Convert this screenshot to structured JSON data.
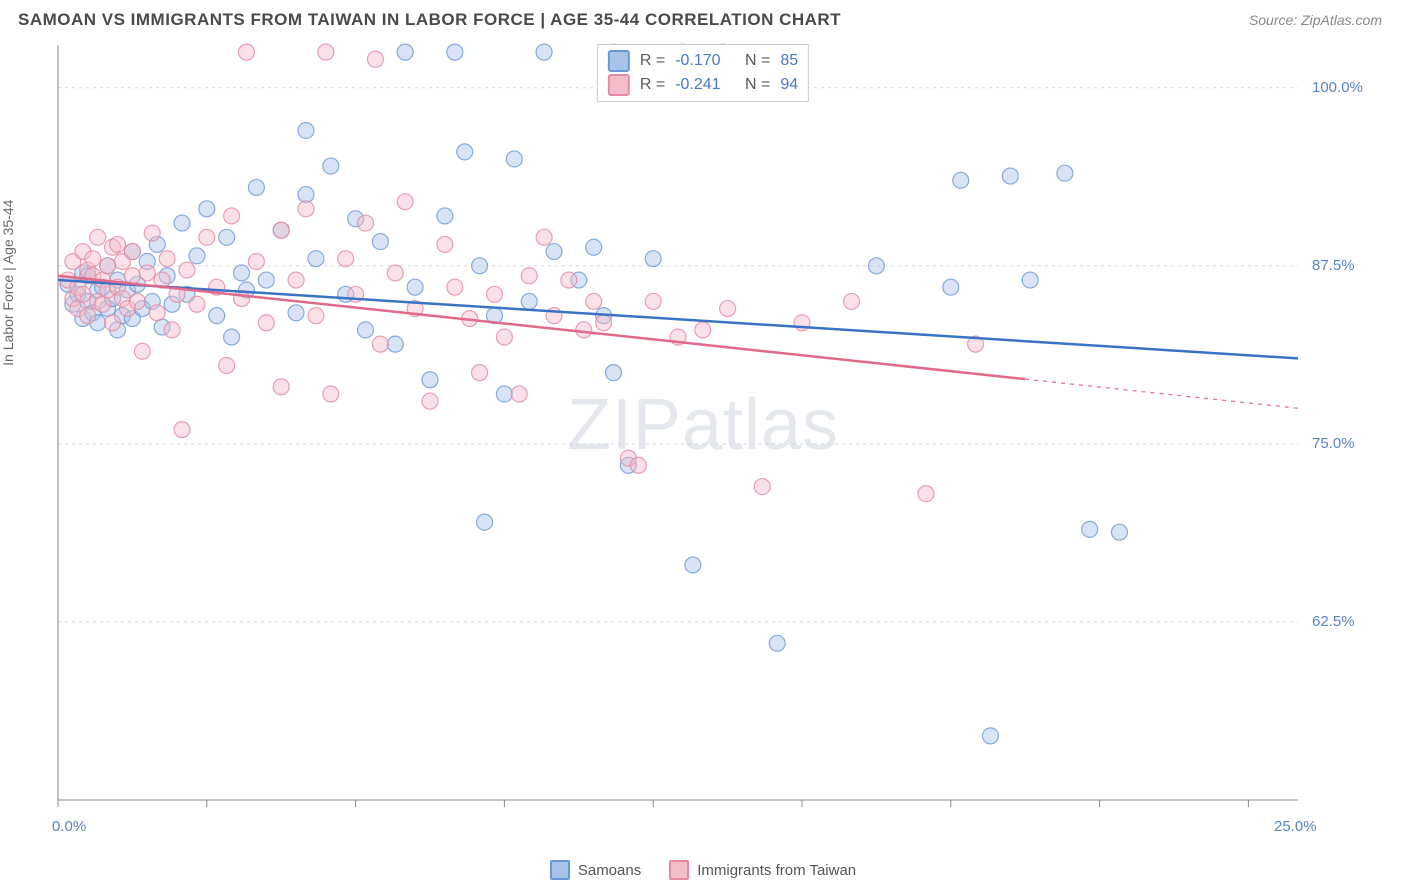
{
  "title": "SAMOAN VS IMMIGRANTS FROM TAIWAN IN LABOR FORCE | AGE 35-44 CORRELATION CHART",
  "source": "Source: ZipAtlas.com",
  "watermark_zip": "ZIP",
  "watermark_atlas": "atlas",
  "ylabel": "In Labor Force | Age 35-44",
  "chart": {
    "type": "scatter",
    "background_color": "#ffffff",
    "grid_color": "#d8d8d8",
    "axis_color": "#888888",
    "xlim": [
      0,
      25
    ],
    "ylim": [
      50,
      103
    ],
    "x_ticks": [
      0,
      3,
      6,
      9,
      12,
      15,
      18,
      21,
      24
    ],
    "x_tick_labels_visible": {
      "0": "0.0%",
      "25": "25.0%"
    },
    "y_ticks": [
      62.5,
      75.0,
      87.5,
      100.0
    ],
    "y_tick_labels": [
      "62.5%",
      "75.0%",
      "87.5%",
      "100.0%"
    ],
    "marker_radius": 8,
    "marker_opacity": 0.45,
    "line_width": 2.5,
    "series": [
      {
        "name": "Samoans",
        "color_fill": "#a8c3e8",
        "color_stroke": "#6b98d4",
        "line_color": "#3a72c4",
        "R": "-0.170",
        "N": "85",
        "trend": {
          "x1": 0,
          "y1": 86.5,
          "x2": 25,
          "y2": 81.0,
          "dash_from_x": null
        },
        "points": [
          [
            0.2,
            86.2
          ],
          [
            0.3,
            84.8
          ],
          [
            0.4,
            85.5
          ],
          [
            0.5,
            87.0
          ],
          [
            0.5,
            83.8
          ],
          [
            0.6,
            85.0
          ],
          [
            0.6,
            86.8
          ],
          [
            0.7,
            84.2
          ],
          [
            0.8,
            85.8
          ],
          [
            0.8,
            83.5
          ],
          [
            0.9,
            86.0
          ],
          [
            1.0,
            84.5
          ],
          [
            1.0,
            87.5
          ],
          [
            1.1,
            85.2
          ],
          [
            1.2,
            83.0
          ],
          [
            1.2,
            86.5
          ],
          [
            1.3,
            84.0
          ],
          [
            1.4,
            85.8
          ],
          [
            1.5,
            88.5
          ],
          [
            1.5,
            83.8
          ],
          [
            1.6,
            86.2
          ],
          [
            1.7,
            84.5
          ],
          [
            1.8,
            87.8
          ],
          [
            1.9,
            85.0
          ],
          [
            2.0,
            89.0
          ],
          [
            2.1,
            83.2
          ],
          [
            2.2,
            86.8
          ],
          [
            2.3,
            84.8
          ],
          [
            2.5,
            90.5
          ],
          [
            2.6,
            85.5
          ],
          [
            2.8,
            88.2
          ],
          [
            3.0,
            91.5
          ],
          [
            3.2,
            84.0
          ],
          [
            3.4,
            89.5
          ],
          [
            3.5,
            82.5
          ],
          [
            3.7,
            87.0
          ],
          [
            3.8,
            85.8
          ],
          [
            4.0,
            93.0
          ],
          [
            4.2,
            86.5
          ],
          [
            4.5,
            90.0
          ],
          [
            4.8,
            84.2
          ],
          [
            5.0,
            92.5
          ],
          [
            5.0,
            97.0
          ],
          [
            5.2,
            88.0
          ],
          [
            5.5,
            94.5
          ],
          [
            5.8,
            85.5
          ],
          [
            6.0,
            90.8
          ],
          [
            6.2,
            83.0
          ],
          [
            6.5,
            89.2
          ],
          [
            6.8,
            82.0
          ],
          [
            7.0,
            102.5
          ],
          [
            7.2,
            86.0
          ],
          [
            7.5,
            79.5
          ],
          [
            7.8,
            91.0
          ],
          [
            8.0,
            102.5
          ],
          [
            8.2,
            95.5
          ],
          [
            8.5,
            87.5
          ],
          [
            8.6,
            69.5
          ],
          [
            8.8,
            84.0
          ],
          [
            9.0,
            78.5
          ],
          [
            9.2,
            95.0
          ],
          [
            9.5,
            85.0
          ],
          [
            9.8,
            102.5
          ],
          [
            10.0,
            88.5
          ],
          [
            10.5,
            86.5
          ],
          [
            10.8,
            88.8
          ],
          [
            11.0,
            84.0
          ],
          [
            11.2,
            80.0
          ],
          [
            11.5,
            73.5
          ],
          [
            12.0,
            88.0
          ],
          [
            12.6,
            102.5
          ],
          [
            12.8,
            66.5
          ],
          [
            13.4,
            102.5
          ],
          [
            14.5,
            61.0
          ],
          [
            16.5,
            87.5
          ],
          [
            18.0,
            86.0
          ],
          [
            18.2,
            93.5
          ],
          [
            18.8,
            54.5
          ],
          [
            19.2,
            93.8
          ],
          [
            19.6,
            86.5
          ],
          [
            20.3,
            94.0
          ],
          [
            20.8,
            69.0
          ],
          [
            21.4,
            68.8
          ]
        ]
      },
      {
        "name": "Immigrants from Taiwan",
        "color_fill": "#f2bcc9",
        "color_stroke": "#e48aa3",
        "line_color": "#e06a8a",
        "R": "-0.241",
        "N": "94",
        "trend": {
          "x1": 0,
          "y1": 86.8,
          "x2": 25,
          "y2": 77.5,
          "dash_from_x": 19.5
        },
        "points": [
          [
            0.2,
            86.5
          ],
          [
            0.3,
            85.2
          ],
          [
            0.3,
            87.8
          ],
          [
            0.4,
            84.5
          ],
          [
            0.4,
            86.0
          ],
          [
            0.5,
            88.5
          ],
          [
            0.5,
            85.5
          ],
          [
            0.6,
            87.2
          ],
          [
            0.6,
            84.0
          ],
          [
            0.7,
            86.8
          ],
          [
            0.7,
            88.0
          ],
          [
            0.8,
            85.0
          ],
          [
            0.8,
            89.5
          ],
          [
            0.9,
            86.5
          ],
          [
            0.9,
            84.8
          ],
          [
            1.0,
            87.5
          ],
          [
            1.0,
            85.8
          ],
          [
            1.1,
            88.8
          ],
          [
            1.1,
            83.5
          ],
          [
            1.2,
            86.0
          ],
          [
            1.2,
            89.0
          ],
          [
            1.3,
            85.2
          ],
          [
            1.3,
            87.8
          ],
          [
            1.4,
            84.5
          ],
          [
            1.5,
            86.8
          ],
          [
            1.5,
            88.5
          ],
          [
            1.6,
            85.0
          ],
          [
            1.7,
            81.5
          ],
          [
            1.8,
            87.0
          ],
          [
            1.9,
            89.8
          ],
          [
            2.0,
            84.2
          ],
          [
            2.1,
            86.5
          ],
          [
            2.2,
            88.0
          ],
          [
            2.3,
            83.0
          ],
          [
            2.4,
            85.5
          ],
          [
            2.5,
            76.0
          ],
          [
            2.6,
            87.2
          ],
          [
            2.8,
            84.8
          ],
          [
            3.0,
            89.5
          ],
          [
            3.2,
            86.0
          ],
          [
            3.4,
            80.5
          ],
          [
            3.5,
            91.0
          ],
          [
            3.7,
            85.2
          ],
          [
            3.8,
            102.5
          ],
          [
            4.0,
            87.8
          ],
          [
            4.2,
            83.5
          ],
          [
            4.5,
            90.0
          ],
          [
            4.5,
            79.0
          ],
          [
            4.8,
            86.5
          ],
          [
            5.0,
            91.5
          ],
          [
            5.2,
            84.0
          ],
          [
            5.4,
            102.5
          ],
          [
            5.5,
            78.5
          ],
          [
            5.8,
            88.0
          ],
          [
            6.0,
            85.5
          ],
          [
            6.2,
            90.5
          ],
          [
            6.4,
            102.0
          ],
          [
            6.5,
            82.0
          ],
          [
            6.8,
            87.0
          ],
          [
            7.0,
            92.0
          ],
          [
            7.2,
            84.5
          ],
          [
            7.5,
            78.0
          ],
          [
            7.8,
            89.0
          ],
          [
            8.0,
            86.0
          ],
          [
            8.3,
            83.8
          ],
          [
            8.5,
            80.0
          ],
          [
            8.8,
            85.5
          ],
          [
            9.0,
            82.5
          ],
          [
            9.3,
            78.5
          ],
          [
            9.5,
            86.8
          ],
          [
            9.8,
            89.5
          ],
          [
            10.0,
            84.0
          ],
          [
            10.3,
            86.5
          ],
          [
            10.6,
            83.0
          ],
          [
            10.8,
            85.0
          ],
          [
            11.0,
            83.5
          ],
          [
            11.2,
            102.5
          ],
          [
            11.5,
            74.0
          ],
          [
            11.7,
            73.5
          ],
          [
            12.0,
            85.0
          ],
          [
            12.5,
            82.5
          ],
          [
            13.0,
            83.0
          ],
          [
            13.5,
            84.5
          ],
          [
            14.2,
            72.0
          ],
          [
            15.0,
            83.5
          ],
          [
            16.0,
            85.0
          ],
          [
            17.5,
            71.5
          ],
          [
            18.5,
            82.0
          ]
        ]
      }
    ]
  },
  "stat_labels": {
    "R": "R =",
    "N": "N ="
  },
  "legend_labels": {
    "s1": "Samoans",
    "s2": "Immigrants from Taiwan"
  }
}
